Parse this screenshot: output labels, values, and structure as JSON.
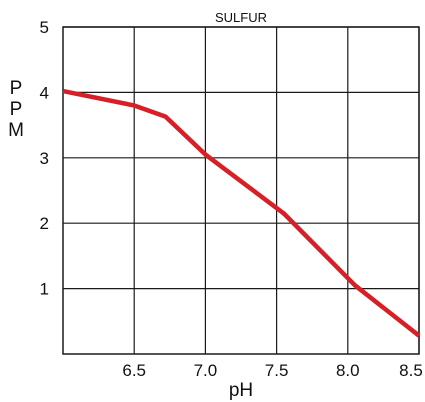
{
  "chart_data": {
    "type": "line",
    "title": "SULFUR",
    "xlabel": "pH",
    "ylabel": "PPM",
    "xlim": [
      6.0,
      8.5
    ],
    "ylim": [
      0,
      5
    ],
    "x_ticks": [
      6.5,
      7.0,
      7.5,
      8.0,
      8.5
    ],
    "x_tick_labels": [
      "6.5",
      "7.0",
      "7.5",
      "8.0",
      "8.5"
    ],
    "y_ticks": [
      1,
      2,
      3,
      4,
      5
    ],
    "y_tick_labels": [
      "1",
      "2",
      "3",
      "4",
      "5"
    ],
    "grid": true,
    "series": [
      {
        "color": "#d61f26",
        "x": [
          6.0,
          6.5,
          6.72,
          7.0,
          7.55,
          8.05,
          8.5
        ],
        "y": [
          4.02,
          3.8,
          3.63,
          3.05,
          2.15,
          1.05,
          0.28
        ]
      }
    ]
  }
}
